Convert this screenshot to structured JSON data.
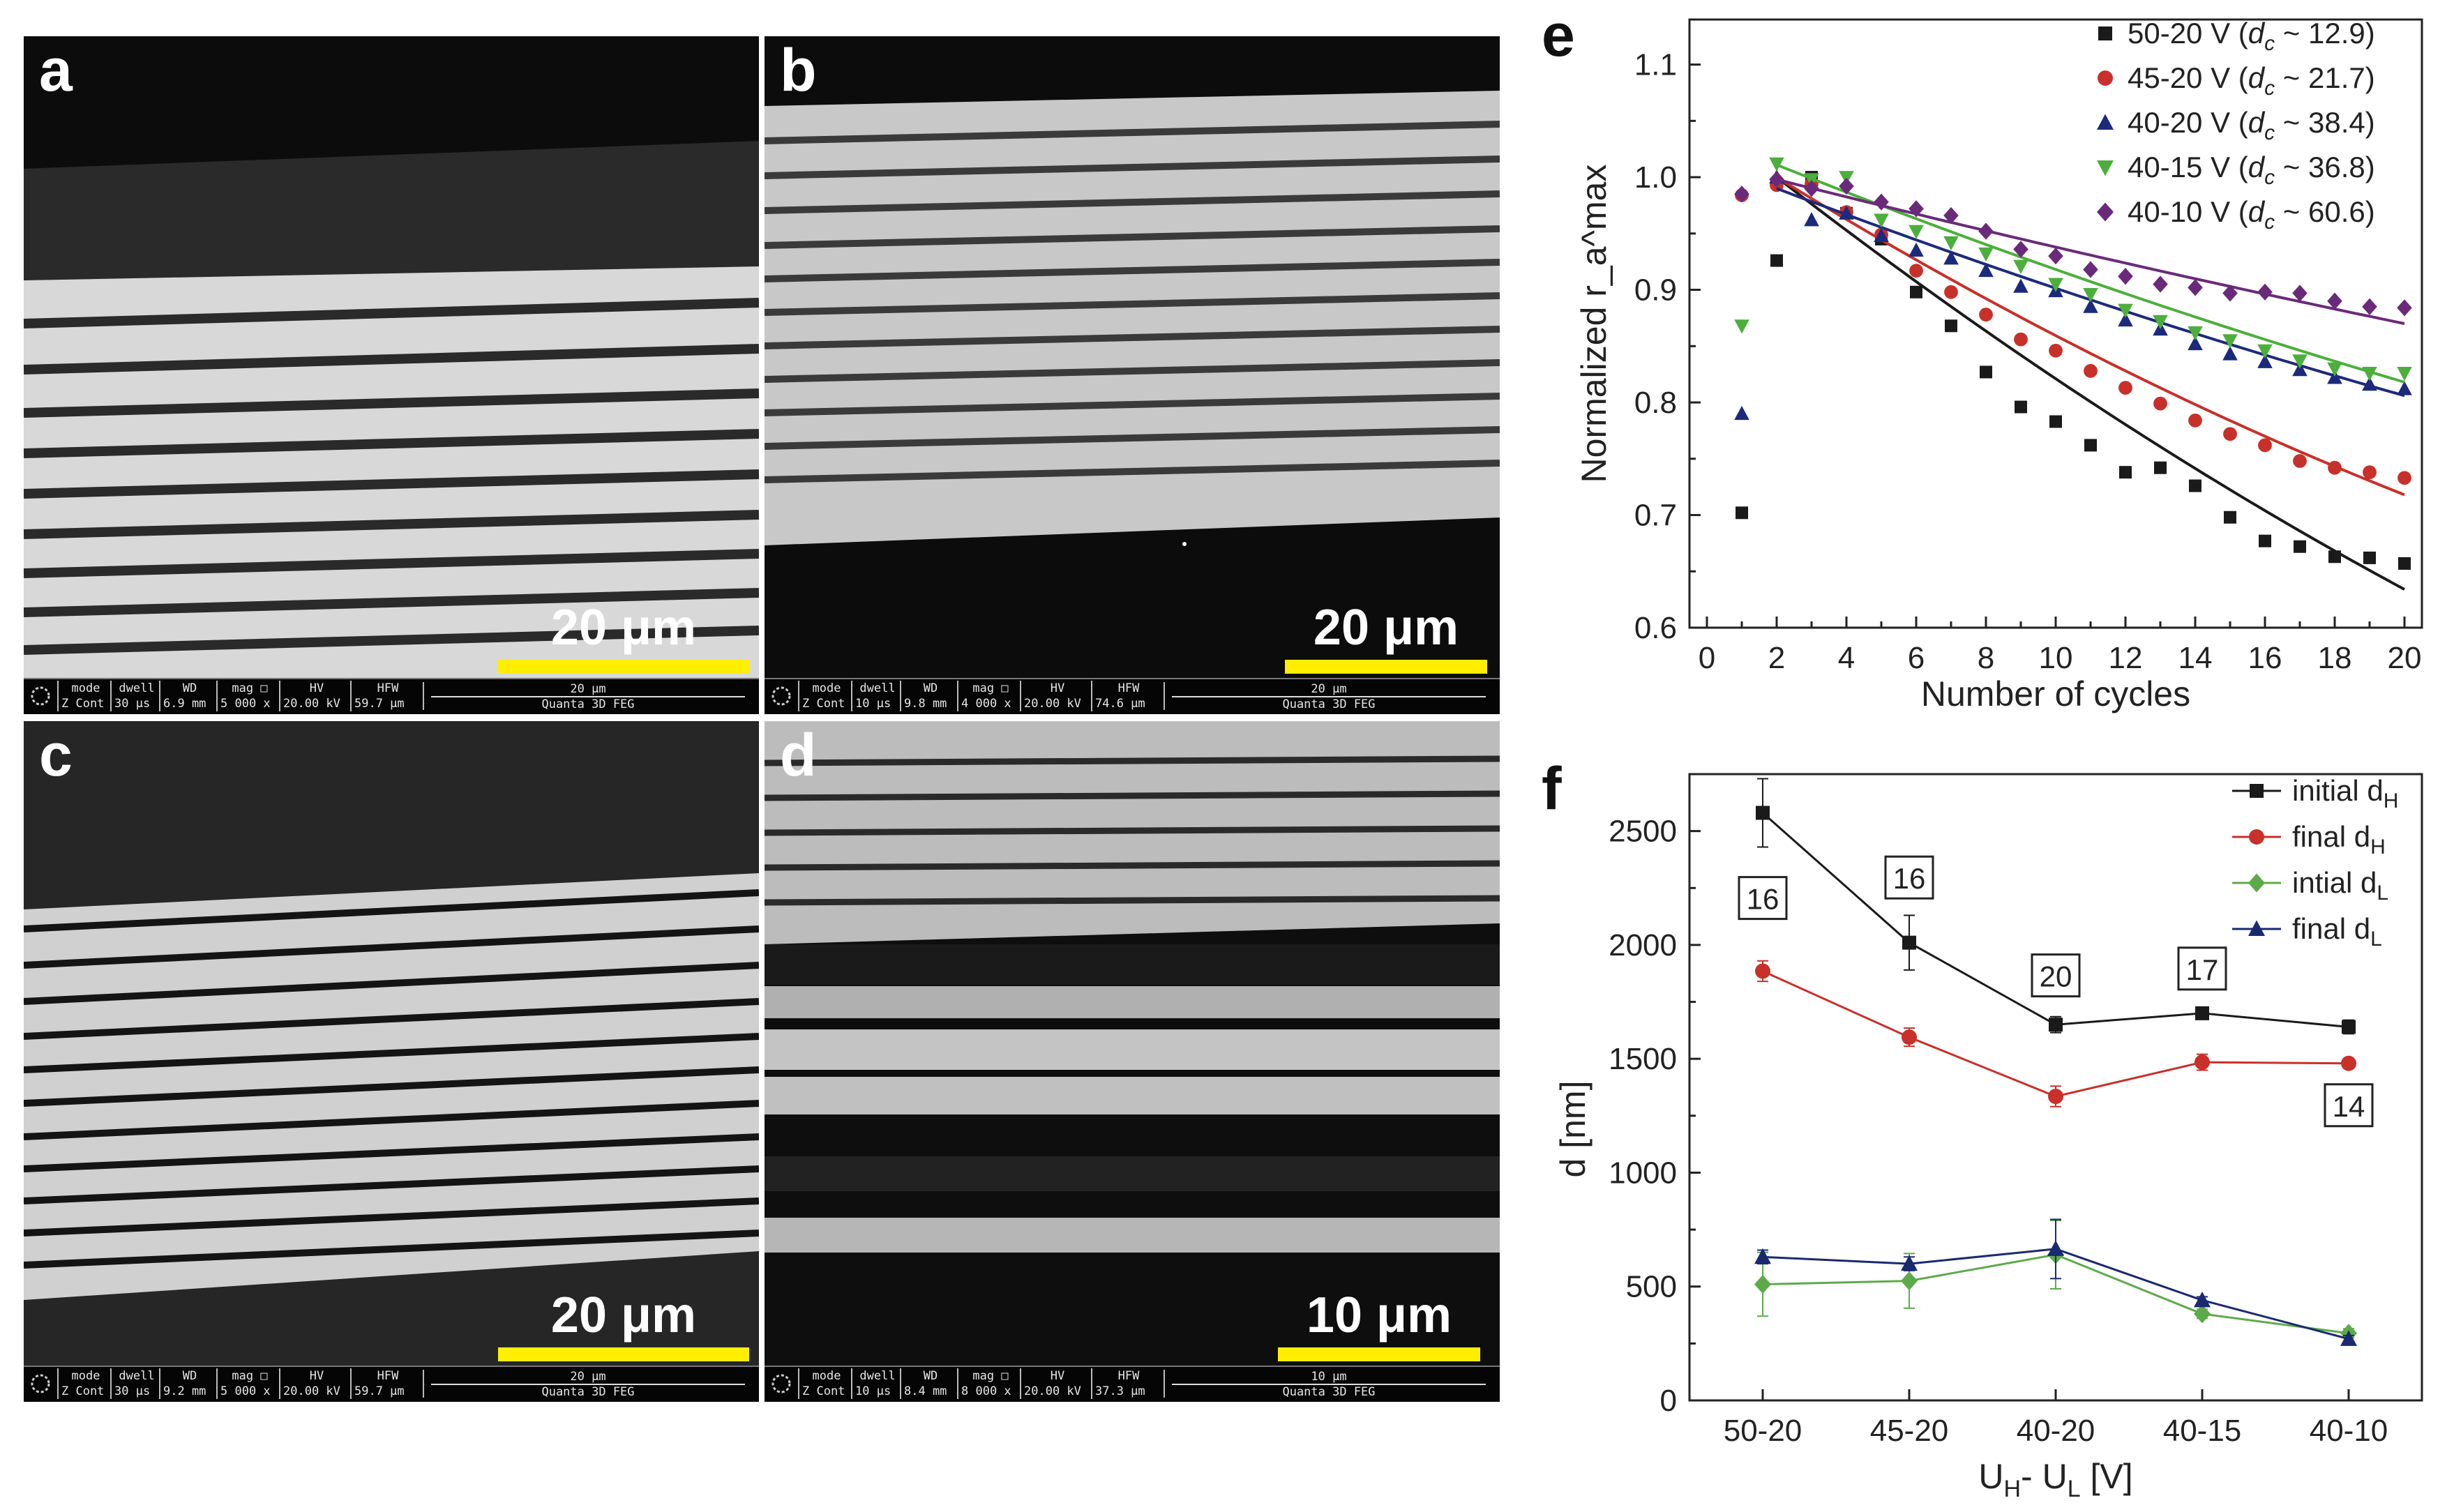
{
  "panels": {
    "a": {
      "label": "a",
      "scale": "20 μm",
      "info": {
        "mode": [
          "mode",
          "Z Cont"
        ],
        "dwell": [
          "dwell",
          "30 μs"
        ],
        "wd": [
          "WD",
          "6.9 mm"
        ],
        "mag": [
          "mag □",
          "5 000 x"
        ],
        "hv": [
          "HV",
          "20.00 kV"
        ],
        "hfw": [
          "HFW",
          "59.7 μm"
        ],
        "bar": "20 μm",
        "instrument": "Quanta 3D FEG"
      }
    },
    "b": {
      "label": "b",
      "scale": "20 μm",
      "info": {
        "mode": [
          "mode",
          "Z Cont"
        ],
        "dwell": [
          "dwell",
          "10 μs"
        ],
        "wd": [
          "WD",
          "9.8 mm"
        ],
        "mag": [
          "mag □",
          "4 000 x"
        ],
        "hv": [
          "HV",
          "20.00 kV"
        ],
        "hfw": [
          "HFW",
          "74.6 μm"
        ],
        "bar": "20 μm",
        "instrument": "Quanta 3D FEG"
      }
    },
    "c": {
      "label": "c",
      "scale": "20 μm",
      "info": {
        "mode": [
          "mode",
          "Z Cont"
        ],
        "dwell": [
          "dwell",
          "30 μs"
        ],
        "wd": [
          "WD",
          "9.2 mm"
        ],
        "mag": [
          "mag □",
          "5 000 x"
        ],
        "hv": [
          "HV",
          "20.00 kV"
        ],
        "hfw": [
          "HFW",
          "59.7 μm"
        ],
        "bar": "20 μm",
        "instrument": "Quanta 3D FEG"
      }
    },
    "d": {
      "label": "d",
      "scale": "10 μm",
      "info": {
        "mode": [
          "mode",
          "Z Cont"
        ],
        "dwell": [
          "dwell",
          "10 μs"
        ],
        "wd": [
          "WD",
          "8.4 mm"
        ],
        "mag": [
          "mag □",
          "8 000 x"
        ],
        "hv": [
          "HV",
          "20.00 kV"
        ],
        "hfw": [
          "HFW",
          "37.3 μm"
        ],
        "bar": "10 μm",
        "instrument": "Quanta 3D FEG"
      }
    }
  },
  "colors": {
    "black": "#1a1a1a",
    "red": "#c8302a",
    "blue": "#1c2a7c",
    "green": "#4caf3c",
    "purple": "#6a2a7a",
    "fit_green": "#44b02c",
    "fit_purple": "#6a2a7a",
    "f_green": "#5daa4a",
    "f_blue": "#1a2a70",
    "scalebar": "#ffee00"
  },
  "chart_data": [
    {
      "panel": "e",
      "label": "e",
      "type": "scatter",
      "xlabel": "Number of cycles",
      "ylabel": "Normalized r_a^max",
      "xlim": [
        -0.5,
        20.5
      ],
      "ylim": [
        0.6,
        1.14
      ],
      "xticks": [
        0,
        2,
        4,
        6,
        8,
        10,
        12,
        14,
        16,
        18,
        20
      ],
      "yticks": [
        0.6,
        0.7,
        0.8,
        0.9,
        1.0,
        1.1
      ],
      "ytick_labels": [
        "0.6",
        "0.7",
        "0.8",
        "0.9",
        "1.0",
        "1.1"
      ],
      "legend_position": "top-right",
      "series": [
        {
          "name": "50-20 V (dc ~ 12.9)",
          "legend_main": "50-20 V (",
          "legend_var": "d",
          "legend_sub": "c",
          "legend_tail": " ~ 12.9)",
          "color_key": "black",
          "marker": "square",
          "x": [
            1,
            2,
            3,
            4,
            5,
            6,
            7,
            8,
            9,
            10,
            11,
            12,
            13,
            14,
            15,
            16,
            17,
            18,
            19,
            20
          ],
          "y": [
            0.702,
            0.926,
            1.0,
            0.968,
            0.945,
            0.898,
            0.868,
            0.827,
            0.796,
            0.783,
            0.762,
            0.738,
            0.742,
            0.726,
            0.698,
            0.677,
            0.672,
            0.663,
            0.662,
            0.657
          ],
          "fit": {
            "x0": 2,
            "y0": 1.0,
            "x1": 20,
            "y1": 0.634,
            "curv": -0.18
          }
        },
        {
          "name": "45-20 V (dc ~ 21.7)",
          "legend_main": "45-20 V (",
          "legend_var": "d",
          "legend_sub": "c",
          "legend_tail": " ~ 21.7)",
          "color_key": "red",
          "marker": "circle",
          "x": [
            1,
            2,
            3,
            4,
            5,
            6,
            7,
            8,
            9,
            10,
            11,
            12,
            13,
            14,
            15,
            16,
            17,
            18,
            19,
            20
          ],
          "y": [
            0.984,
            0.993,
            0.994,
            0.969,
            0.949,
            0.917,
            0.898,
            0.878,
            0.856,
            0.846,
            0.828,
            0.813,
            0.799,
            0.784,
            0.772,
            0.762,
            0.748,
            0.742,
            0.738,
            0.733
          ],
          "fit": {
            "x0": 2,
            "y0": 1.0,
            "x1": 20,
            "y1": 0.718,
            "curv": -0.22
          }
        },
        {
          "name": "40-20 V (dc ~ 38.4)",
          "legend_main": "40-20 V (",
          "legend_var": "d",
          "legend_sub": "c",
          "legend_tail": " ~ 38.4)",
          "color_key": "blue",
          "marker": "triangle-up",
          "x": [
            1,
            2,
            3,
            4,
            5,
            6,
            7,
            8,
            9,
            10,
            11,
            12,
            13,
            14,
            15,
            16,
            17,
            18,
            19,
            20
          ],
          "y": [
            0.79,
            1.0,
            0.962,
            0.968,
            0.948,
            0.935,
            0.928,
            0.917,
            0.903,
            0.899,
            0.885,
            0.873,
            0.865,
            0.852,
            0.843,
            0.836,
            0.829,
            0.822,
            0.816,
            0.812
          ],
          "fit": {
            "x0": 2,
            "y0": 0.99,
            "x1": 20,
            "y1": 0.806,
            "curv": -0.15
          }
        },
        {
          "name": "40-15 V (dc ~ 36.8)",
          "legend_main": "40-15 V (",
          "legend_var": "d",
          "legend_sub": "c",
          "legend_tail": " ~ 36.8)",
          "color_key": "green",
          "marker": "triangle-down",
          "x": [
            1,
            2,
            3,
            4,
            5,
            6,
            7,
            8,
            9,
            10,
            11,
            12,
            13,
            14,
            15,
            16,
            17,
            18,
            19,
            20
          ],
          "y": [
            0.868,
            1.012,
            0.998,
            1.0,
            0.962,
            0.952,
            0.942,
            0.932,
            0.921,
            0.905,
            0.896,
            0.882,
            0.872,
            0.862,
            0.855,
            0.846,
            0.837,
            0.83,
            0.826,
            0.826
          ],
          "fit": {
            "x0": 2,
            "y0": 1.011,
            "x1": 20,
            "y1": 0.818,
            "curv": -0.15
          }
        },
        {
          "name": "40-10 V (dc ~ 60.6)",
          "legend_main": "40-10 V (",
          "legend_var": "d",
          "legend_sub": "c",
          "legend_tail": " ~ 60.6)",
          "color_key": "purple",
          "marker": "diamond",
          "x": [
            1,
            2,
            3,
            4,
            5,
            6,
            7,
            8,
            9,
            10,
            11,
            12,
            13,
            14,
            15,
            16,
            17,
            18,
            19,
            20
          ],
          "y": [
            0.985,
            0.998,
            0.99,
            0.992,
            0.978,
            0.972,
            0.966,
            0.952,
            0.936,
            0.93,
            0.918,
            0.912,
            0.905,
            0.902,
            0.897,
            0.898,
            0.897,
            0.89,
            0.885,
            0.884
          ],
          "fit": {
            "x0": 2,
            "y0": 0.998,
            "x1": 20,
            "y1": 0.87,
            "curv": -0.1
          }
        }
      ]
    },
    {
      "panel": "f",
      "label": "f",
      "type": "line",
      "xlabel_main": "U",
      "xlabel_sub1": "H",
      "xlabel_mid": "- U",
      "xlabel_sub2": "L",
      "xlabel_tail": " [V]",
      "ylabel": "d [nm]",
      "categories": [
        "50-20",
        "45-20",
        "40-20",
        "40-15",
        "40-10"
      ],
      "ylim": [
        0,
        2750
      ],
      "yticks": [
        0,
        500,
        1000,
        1500,
        2000,
        2500
      ],
      "ytick_labels": [
        "0",
        "500",
        "1000",
        "1500",
        "2000",
        "2500"
      ],
      "legend_position": "top-right",
      "series": [
        {
          "name": "initial dH",
          "legend_main": "initial d",
          "legend_sub": "H",
          "color_key": "black",
          "marker": "square",
          "values": [
            2580,
            2010,
            1650,
            1700,
            1640
          ],
          "err": [
            150,
            120,
            35,
            20,
            30
          ]
        },
        {
          "name": "final dH",
          "legend_main": "final d",
          "legend_sub": "H",
          "color_key": "red",
          "marker": "circle",
          "values": [
            1885,
            1595,
            1335,
            1485,
            1480
          ],
          "err": [
            45,
            40,
            45,
            35,
            20
          ]
        },
        {
          "name": "intial dL",
          "legend_main": "intial d",
          "legend_sub": "L",
          "color_key": "f_green",
          "marker": "diamond",
          "values": [
            510,
            525,
            640,
            380,
            295
          ],
          "err": [
            140,
            120,
            150,
            20,
            20
          ]
        },
        {
          "name": "final dL",
          "legend_main": "final d",
          "legend_sub": "L",
          "color_key": "f_blue",
          "marker": "triangle-up",
          "values": [
            630,
            600,
            665,
            440,
            270
          ],
          "err": [
            30,
            30,
            130,
            15,
            15
          ]
        }
      ],
      "annotations": [
        {
          "text": "16",
          "category": 0,
          "y": 2200
        },
        {
          "text": "16",
          "category": 1,
          "y": 2290
        },
        {
          "text": "20",
          "category": 2,
          "y": 1860
        },
        {
          "text": "17",
          "category": 3,
          "y": 1890
        },
        {
          "text": "14",
          "category": 4,
          "y": 1290
        }
      ]
    }
  ]
}
